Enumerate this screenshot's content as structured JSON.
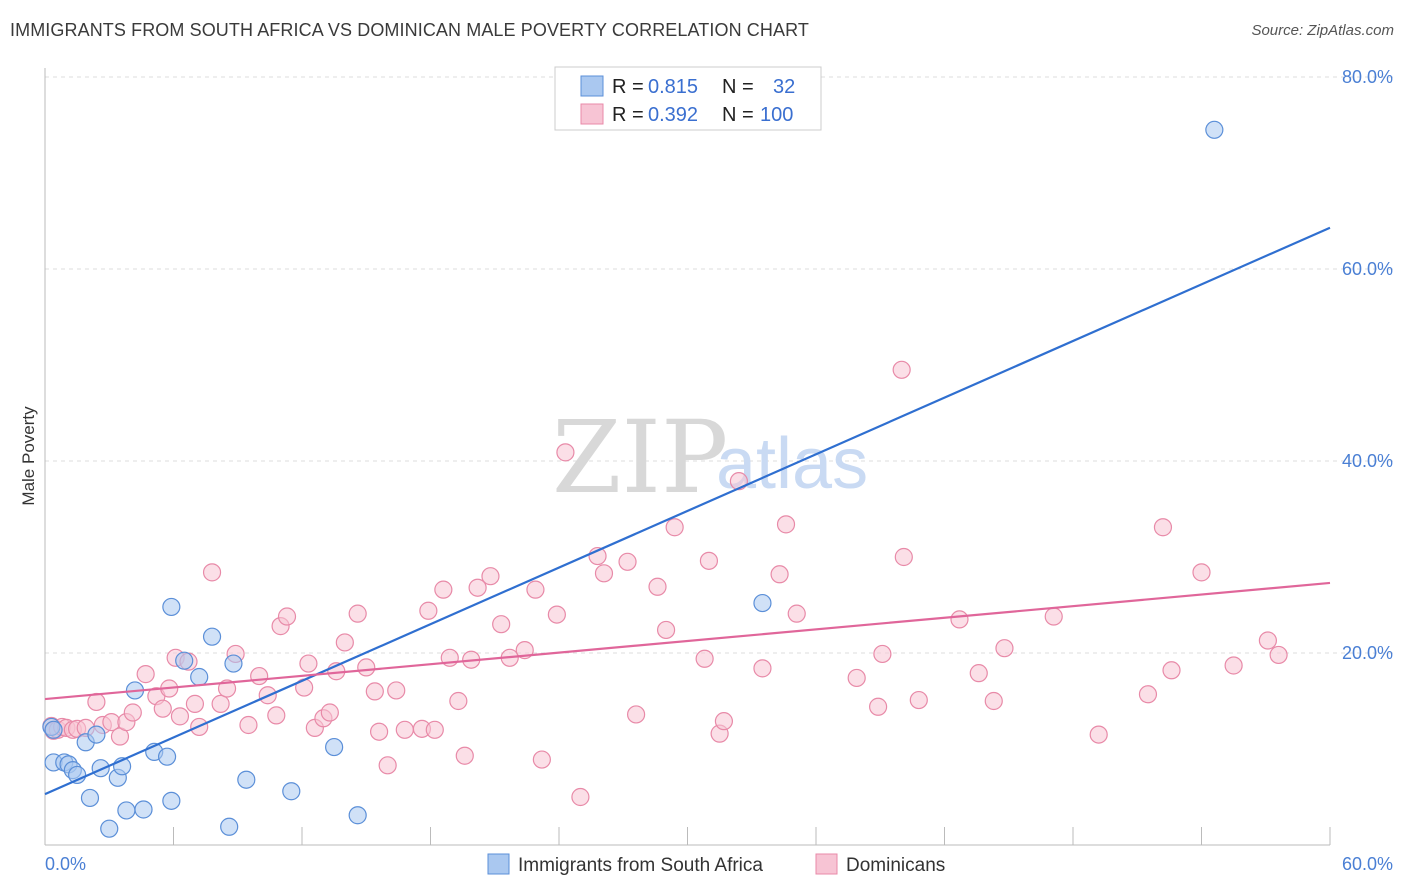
{
  "header": {
    "title": "IMMIGRANTS FROM SOUTH AFRICA VS DOMINICAN MALE POVERTY CORRELATION CHART",
    "source": "Source: ZipAtlas.com"
  },
  "watermark": {
    "zip": "ZIP",
    "atlas": "atlas"
  },
  "colors": {
    "blue_fill": "#aac8f0",
    "blue_stroke": "#5b8fd8",
    "blue_line": "#2f6fd0",
    "pink_fill": "#f7c4d4",
    "pink_stroke": "#e88aa8",
    "pink_line": "#e0669a",
    "tick_text": "#4a7fd4",
    "grid": "#dddddd"
  },
  "legend": {
    "rows": [
      {
        "r_label": "R =",
        "r_value": "0.815",
        "n_label": "N =",
        "n_value": "32"
      },
      {
        "r_label": "R =",
        "r_value": "0.392",
        "n_label": "N =",
        "n_value": "100"
      }
    ]
  },
  "bottom_legend": {
    "items": [
      {
        "label": "Immigrants from South Africa"
      },
      {
        "label": "Dominicans"
      }
    ]
  },
  "chart_data": {
    "type": "scatter",
    "title": "IMMIGRANTS FROM SOUTH AFRICA VS DOMINICAN MALE POVERTY CORRELATION CHART",
    "xlabel": "",
    "ylabel": "Male Poverty",
    "xlim": [
      0,
      60
    ],
    "ylim": [
      0,
      80
    ],
    "x_tick_labels": [
      "0.0%",
      "60.0%"
    ],
    "y_ticks": [
      20,
      40,
      60,
      80
    ],
    "y_tick_labels": [
      "20.0%",
      "40.0%",
      "60.0%",
      "80.0%"
    ],
    "legend_position": "top-center",
    "series": [
      {
        "name": "Immigrants from South Africa",
        "r": 0.815,
        "n": 32,
        "trend": {
          "x": [
            0,
            60
          ],
          "y": [
            5.3,
            64.3
          ]
        },
        "points": [
          [
            0.3,
            12.3
          ],
          [
            0.4,
            12.0
          ],
          [
            0.4,
            8.6
          ],
          [
            0.9,
            8.6
          ],
          [
            1.1,
            8.4
          ],
          [
            1.3,
            7.8
          ],
          [
            1.5,
            7.3
          ],
          [
            1.9,
            10.7
          ],
          [
            2.1,
            4.9
          ],
          [
            2.4,
            11.5
          ],
          [
            2.6,
            8.0
          ],
          [
            3.0,
            1.7
          ],
          [
            3.4,
            7.0
          ],
          [
            3.6,
            8.2
          ],
          [
            3.8,
            3.6
          ],
          [
            4.2,
            16.1
          ],
          [
            4.6,
            3.7
          ],
          [
            5.1,
            9.7
          ],
          [
            5.7,
            9.2
          ],
          [
            5.9,
            4.6
          ],
          [
            5.9,
            24.8
          ],
          [
            6.5,
            19.2
          ],
          [
            7.2,
            17.5
          ],
          [
            7.8,
            21.7
          ],
          [
            8.6,
            1.9
          ],
          [
            8.8,
            18.9
          ],
          [
            9.4,
            6.8
          ],
          [
            11.5,
            5.6
          ],
          [
            13.5,
            10.2
          ],
          [
            14.6,
            3.1
          ],
          [
            33.5,
            25.2
          ],
          [
            54.6,
            74.5
          ]
        ]
      },
      {
        "name": "Dominicans",
        "r": 0.392,
        "n": 100,
        "trend": {
          "x": [
            0,
            60
          ],
          "y": [
            15.2,
            27.3
          ]
        },
        "points": [
          [
            0.3,
            12.4
          ],
          [
            0.4,
            11.9
          ],
          [
            0.6,
            12.0
          ],
          [
            0.8,
            12.3
          ],
          [
            1.0,
            12.2
          ],
          [
            1.3,
            12.0
          ],
          [
            1.5,
            12.1
          ],
          [
            1.9,
            12.2
          ],
          [
            2.4,
            14.9
          ],
          [
            2.7,
            12.5
          ],
          [
            3.1,
            12.8
          ],
          [
            3.5,
            11.3
          ],
          [
            3.8,
            12.8
          ],
          [
            4.1,
            13.8
          ],
          [
            4.7,
            17.8
          ],
          [
            5.2,
            15.5
          ],
          [
            5.5,
            14.2
          ],
          [
            5.8,
            16.3
          ],
          [
            6.1,
            19.5
          ],
          [
            6.3,
            13.4
          ],
          [
            6.7,
            19.1
          ],
          [
            7.0,
            14.7
          ],
          [
            7.2,
            12.3
          ],
          [
            7.8,
            28.4
          ],
          [
            8.2,
            14.7
          ],
          [
            8.5,
            16.3
          ],
          [
            8.9,
            19.9
          ],
          [
            9.5,
            12.5
          ],
          [
            10.0,
            17.6
          ],
          [
            10.4,
            15.6
          ],
          [
            10.8,
            13.5
          ],
          [
            11.0,
            22.8
          ],
          [
            11.3,
            23.8
          ],
          [
            12.1,
            16.4
          ],
          [
            12.3,
            18.9
          ],
          [
            12.6,
            12.2
          ],
          [
            13.0,
            13.2
          ],
          [
            13.3,
            13.8
          ],
          [
            13.6,
            18.1
          ],
          [
            14.0,
            21.1
          ],
          [
            14.6,
            24.1
          ],
          [
            15.0,
            18.5
          ],
          [
            15.4,
            16.0
          ],
          [
            15.6,
            11.8
          ],
          [
            16.0,
            8.3
          ],
          [
            16.4,
            16.1
          ],
          [
            16.8,
            12.0
          ],
          [
            17.6,
            12.1
          ],
          [
            17.9,
            24.4
          ],
          [
            18.2,
            12.0
          ],
          [
            18.6,
            26.6
          ],
          [
            18.9,
            19.5
          ],
          [
            19.3,
            15.0
          ],
          [
            19.6,
            9.3
          ],
          [
            19.9,
            19.3
          ],
          [
            20.2,
            26.8
          ],
          [
            20.8,
            28.0
          ],
          [
            21.3,
            23.0
          ],
          [
            21.7,
            19.5
          ],
          [
            22.4,
            20.3
          ],
          [
            22.9,
            26.6
          ],
          [
            23.2,
            8.9
          ],
          [
            23.9,
            24.0
          ],
          [
            24.3,
            40.9
          ],
          [
            25.0,
            5.0
          ],
          [
            25.8,
            30.1
          ],
          [
            26.1,
            28.3
          ],
          [
            27.2,
            29.5
          ],
          [
            27.6,
            13.6
          ],
          [
            28.6,
            26.9
          ],
          [
            29.0,
            22.4
          ],
          [
            29.4,
            33.1
          ],
          [
            30.8,
            19.4
          ],
          [
            31.0,
            29.6
          ],
          [
            31.5,
            11.6
          ],
          [
            31.7,
            12.9
          ],
          [
            32.4,
            37.9
          ],
          [
            33.5,
            18.4
          ],
          [
            34.3,
            28.2
          ],
          [
            34.6,
            33.4
          ],
          [
            35.1,
            24.1
          ],
          [
            37.9,
            17.4
          ],
          [
            38.9,
            14.4
          ],
          [
            39.1,
            19.9
          ],
          [
            40.0,
            49.5
          ],
          [
            40.1,
            30.0
          ],
          [
            40.8,
            15.1
          ],
          [
            42.7,
            23.5
          ],
          [
            43.6,
            17.9
          ],
          [
            44.3,
            15.0
          ],
          [
            44.8,
            20.5
          ],
          [
            47.1,
            23.8
          ],
          [
            49.2,
            11.5
          ],
          [
            51.5,
            15.7
          ],
          [
            52.2,
            33.1
          ],
          [
            52.6,
            18.2
          ],
          [
            54.0,
            28.4
          ],
          [
            55.5,
            18.7
          ],
          [
            57.1,
            21.3
          ],
          [
            57.6,
            19.8
          ]
        ]
      }
    ]
  }
}
